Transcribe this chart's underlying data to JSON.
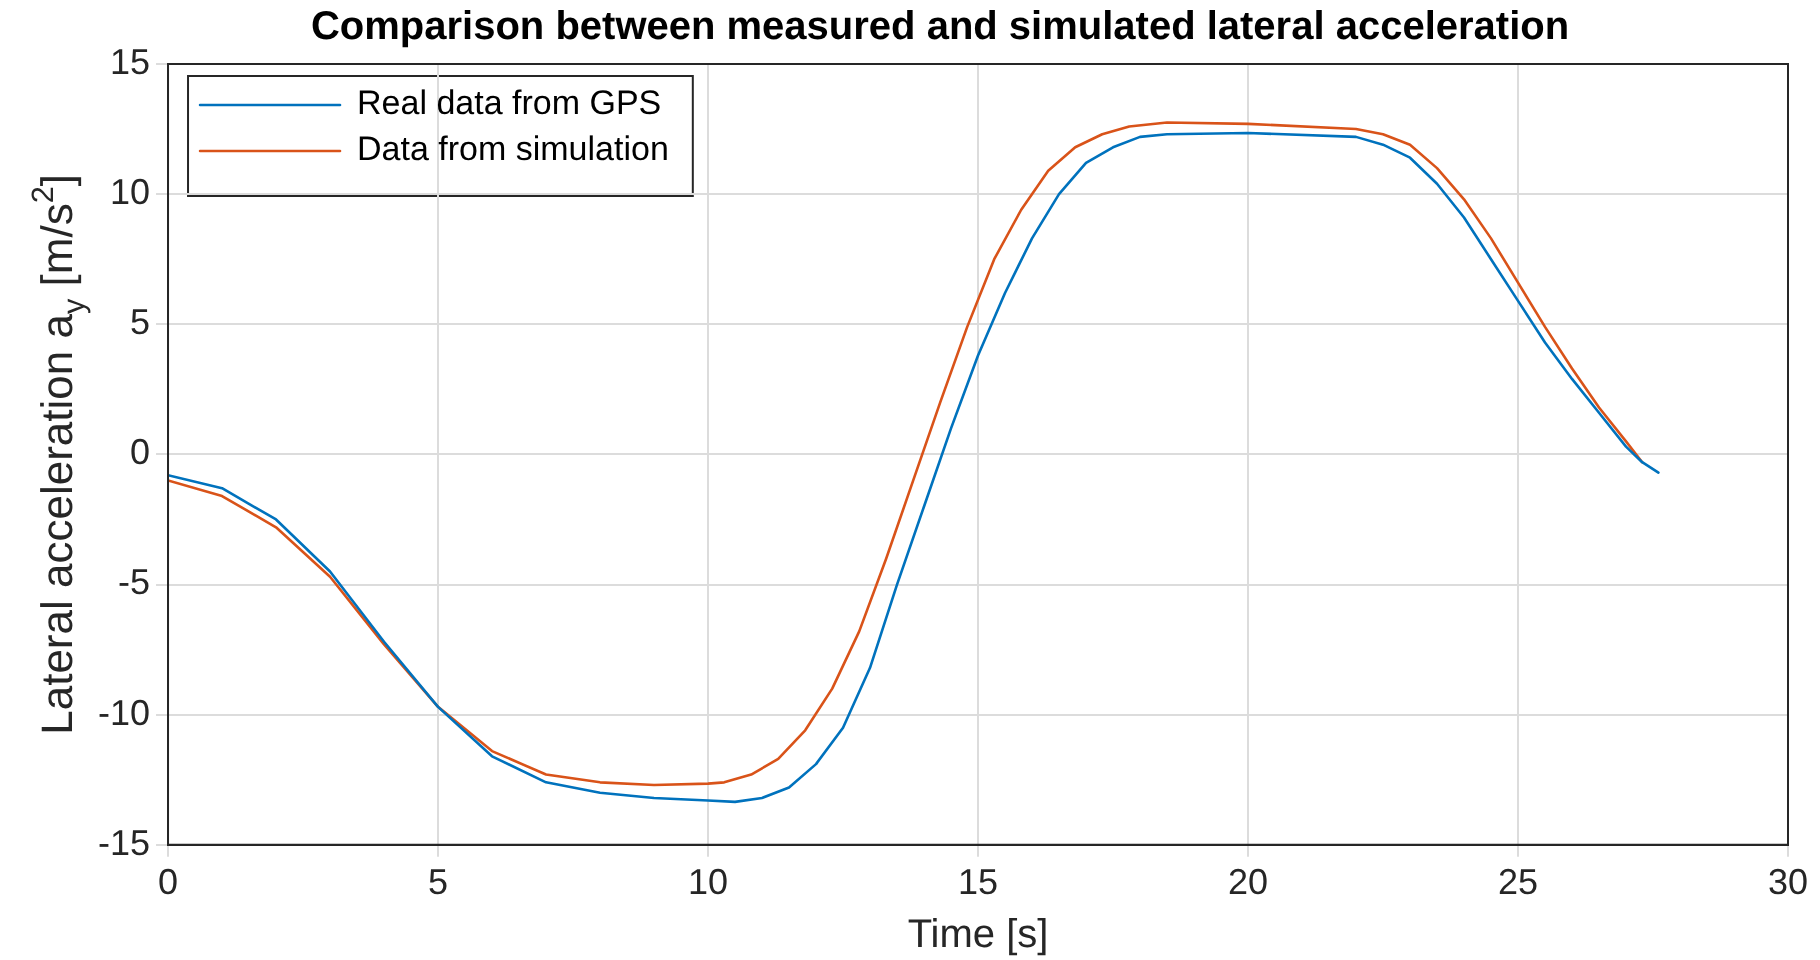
{
  "chart_data": {
    "type": "line",
    "title": "Comparison between measured and simulated lateral acceleration",
    "xlabel": "Time [s]",
    "ylabel": "Lateral acceleration a$_{y}$ [m/s$^{2}$]",
    "xlim": [
      0,
      30
    ],
    "xticks": [
      0,
      5,
      10,
      15,
      20,
      25,
      30
    ],
    "ylim": [
      -15,
      15
    ],
    "yticks": [
      -15,
      -10,
      -5,
      0,
      5,
      10,
      15
    ],
    "grid": true,
    "legend": "top left",
    "marker": "none",
    "line_style": "solid",
    "series": [
      {
        "name": "Real data from GPS",
        "color": "#0072bd",
        "x": [
          0,
          1,
          2,
          3,
          4,
          5,
          6,
          7,
          8,
          9,
          10,
          10.5,
          11,
          11.5,
          12,
          12.5,
          13,
          13.5,
          14,
          14.5,
          15,
          15.5,
          16,
          16.5,
          17,
          17.5,
          18,
          18.5,
          20,
          22,
          22.5,
          23,
          23.5,
          24,
          24.5,
          25,
          25.5,
          26,
          26.5,
          27,
          27.3,
          27.6
        ],
        "values": [
          -0.8,
          -1.3,
          -2.5,
          -4.5,
          -7.2,
          -9.7,
          -11.6,
          -12.6,
          -13,
          -13.2,
          -13.3,
          -13.35,
          -13.2,
          -12.8,
          -11.9,
          -10.5,
          -8.2,
          -5,
          -2,
          1,
          3.8,
          6.2,
          8.3,
          10,
          11.2,
          11.8,
          12.2,
          12.3,
          12.35,
          12.2,
          11.9,
          11.4,
          10.4,
          9.1,
          7.5,
          5.9,
          4.3,
          2.9,
          1.6,
          0.3,
          -0.3,
          -0.7
        ]
      },
      {
        "name": "Data from simulation",
        "color": "#d95319",
        "x": [
          0,
          1,
          2,
          3,
          4,
          5,
          6,
          7,
          8,
          9,
          10,
          10.3,
          10.8,
          11.3,
          11.8,
          12.3,
          12.8,
          13.3,
          13.8,
          14.3,
          14.8,
          15.3,
          15.8,
          16.3,
          16.8,
          17.3,
          17.8,
          18.5,
          20,
          22,
          22.5,
          23,
          23.5,
          24,
          24.5,
          25,
          25.5,
          26,
          26.5,
          27,
          27.3
        ],
        "values": [
          -1,
          -1.6,
          -2.8,
          -4.7,
          -7.3,
          -9.7,
          -11.4,
          -12.3,
          -12.6,
          -12.7,
          -12.65,
          -12.6,
          -12.3,
          -11.7,
          -10.6,
          -9,
          -6.8,
          -4,
          -1,
          2,
          4.9,
          7.5,
          9.4,
          10.9,
          11.8,
          12.3,
          12.6,
          12.75,
          12.7,
          12.5,
          12.3,
          11.9,
          11,
          9.8,
          8.3,
          6.6,
          4.9,
          3.3,
          1.8,
          0.5,
          -0.3
        ]
      }
    ]
  }
}
